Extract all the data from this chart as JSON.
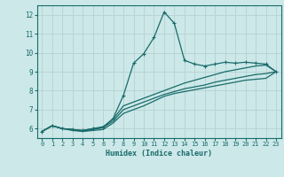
{
  "xlabel": "Humidex (Indice chaleur)",
  "ylabel": "",
  "xlim": [
    -0.5,
    23.5
  ],
  "ylim": [
    5.5,
    12.5
  ],
  "xticks": [
    0,
    1,
    2,
    3,
    4,
    5,
    6,
    7,
    8,
    9,
    10,
    11,
    12,
    13,
    14,
    15,
    16,
    17,
    18,
    19,
    20,
    21,
    22,
    23
  ],
  "yticks": [
    6,
    7,
    8,
    9,
    10,
    11,
    12
  ],
  "background_color": "#cce8e8",
  "grid_color": "#b8d4d4",
  "line_color": "#1a6b6b",
  "line1_x": [
    0,
    1,
    2,
    3,
    4,
    5,
    6,
    7,
    8,
    9,
    10,
    11,
    12,
    13,
    14,
    15,
    16,
    17,
    18,
    19,
    20,
    21,
    22,
    23
  ],
  "line1_y": [
    5.85,
    6.15,
    6.0,
    5.95,
    5.9,
    6.0,
    6.05,
    6.55,
    7.75,
    9.45,
    9.95,
    10.8,
    12.15,
    11.55,
    9.6,
    9.4,
    9.3,
    9.4,
    9.5,
    9.45,
    9.5,
    9.45,
    9.4,
    9.0
  ],
  "line2_x": [
    0,
    1,
    2,
    3,
    4,
    5,
    6,
    7,
    8,
    9,
    10,
    11,
    12,
    13,
    14,
    15,
    16,
    17,
    18,
    19,
    20,
    21,
    22,
    23
  ],
  "line2_y": [
    5.85,
    6.15,
    6.0,
    5.95,
    5.9,
    6.0,
    6.1,
    6.5,
    7.2,
    7.4,
    7.6,
    7.8,
    8.0,
    8.2,
    8.4,
    8.55,
    8.7,
    8.85,
    9.0,
    9.1,
    9.2,
    9.3,
    9.35,
    9.0
  ],
  "line3_x": [
    0,
    1,
    2,
    3,
    4,
    5,
    6,
    7,
    8,
    9,
    10,
    11,
    12,
    13,
    14,
    15,
    16,
    17,
    18,
    19,
    20,
    21,
    22,
    23
  ],
  "line3_y": [
    5.85,
    6.15,
    6.0,
    5.95,
    5.85,
    5.95,
    6.05,
    6.4,
    7.0,
    7.2,
    7.4,
    7.6,
    7.8,
    7.95,
    8.1,
    8.2,
    8.3,
    8.45,
    8.55,
    8.65,
    8.75,
    8.85,
    8.9,
    9.0
  ],
  "line4_x": [
    0,
    1,
    2,
    3,
    4,
    5,
    6,
    7,
    8,
    9,
    10,
    11,
    12,
    13,
    14,
    15,
    16,
    17,
    18,
    19,
    20,
    21,
    22,
    23
  ],
  "line4_y": [
    5.85,
    6.15,
    6.0,
    5.9,
    5.85,
    5.9,
    5.95,
    6.3,
    6.8,
    7.0,
    7.2,
    7.45,
    7.7,
    7.85,
    7.95,
    8.05,
    8.15,
    8.25,
    8.35,
    8.45,
    8.55,
    8.6,
    8.65,
    9.0
  ]
}
